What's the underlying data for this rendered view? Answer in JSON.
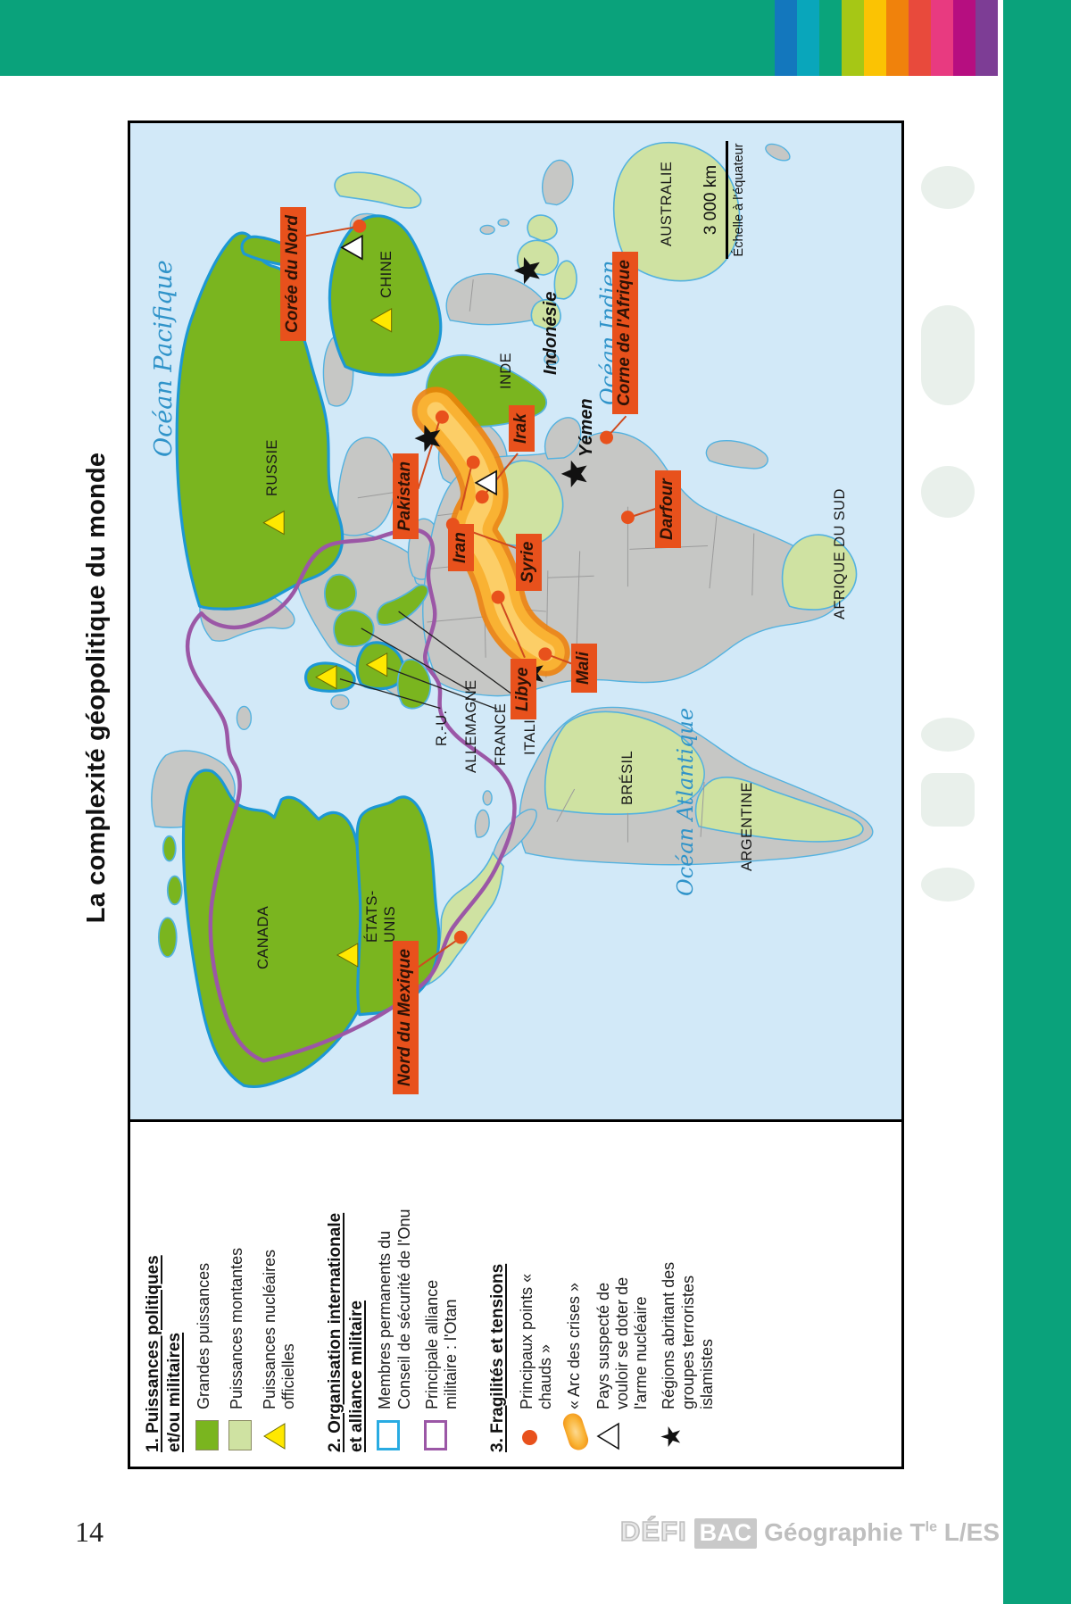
{
  "page": {
    "number": "14"
  },
  "header": {
    "bar_color": "#0aa27b",
    "stripe_colors": [
      "#1377bd",
      "#09a6bb",
      "#0aa47b",
      "#a6c715",
      "#fbc303",
      "#f0820c",
      "#e84a3c",
      "#e83a80",
      "#b60e80",
      "#7d3d95"
    ]
  },
  "footer": {
    "brand_defi": "DÉFI",
    "brand_bac": "BAC",
    "subject": "Géographie",
    "grade_base": "T",
    "grade_sup": "le",
    "series": "L/ES"
  },
  "figure": {
    "title": "La complexité géopolitique du monde",
    "map": {
      "oceans": {
        "pacifique": "Océan Pacifique",
        "indien": "Océan Indien",
        "atlantique": "Océan Atlantique"
      },
      "scale": {
        "distance": "3 000 km",
        "note": "Échelle à l'équateur"
      },
      "countries": {
        "canada": "CANADA",
        "etats_unis_1": "ÉTATS-",
        "etats_unis_2": "UNIS",
        "bresil": "BRÉSIL",
        "argentine": "ARGENTINE",
        "afrique_du_sud": "AFRIQUE DU SUD",
        "russie": "RUSSIE",
        "chine": "CHINE",
        "inde": "INDE",
        "australie": "AUSTRALIE",
        "ru": "R.-U.",
        "allemagne": "ALLEMAGNE",
        "france": "FRANCE",
        "italie": "ITALIE"
      },
      "italic_places": {
        "yemen": "Yémen",
        "indonesie": "Indonésie"
      },
      "crisis_labels": {
        "mexique": "Nord du Mexique",
        "coree": "Corée du Nord",
        "pakistan": "Pakistan",
        "iran": "Iran",
        "irak": "Irak",
        "syrie": "Syrie",
        "libye": "Libye",
        "mali": "Mali",
        "darfour": "Darfour",
        "corne": "Corne de l'Afrique"
      }
    },
    "legend": {
      "section1": {
        "title_line1": "1. Puissances politiques",
        "title_line2": "et/ou militaires",
        "grandes": "Grandes puissances",
        "montantes": "Puissances montantes",
        "nucleaires": "Puissances nucléaires officielles"
      },
      "section2": {
        "title_line1": "2. Organisation internationale",
        "title_line2": "et alliance militaire",
        "onu": "Membres permanents du Conseil de sécurité de l'Onu",
        "otan": "Principale alliance militaire : l'Otan"
      },
      "section3": {
        "title": "3. Fragilités et tensions",
        "points": "Principaux points « chauds »",
        "arc": "« Arc des crises »",
        "suspect": "Pays suspecté de vouloir se doter de l'arme nucléaire",
        "islamistes": "Régions abritant des groupes terroristes islamistes"
      }
    }
  },
  "colors": {
    "ocean": "#d2e9f8",
    "great_power_green": "#7ab51f",
    "rising_power_green": "#cfe2a2",
    "other_country_gray": "#c6c7c5",
    "security_council_blue": "#1d98d4",
    "nato_purple": "#9b57a6",
    "crisis_orange": "#e8511c",
    "arc_orange": "#f9b233",
    "nuclear_yellow": "#ffe800"
  }
}
